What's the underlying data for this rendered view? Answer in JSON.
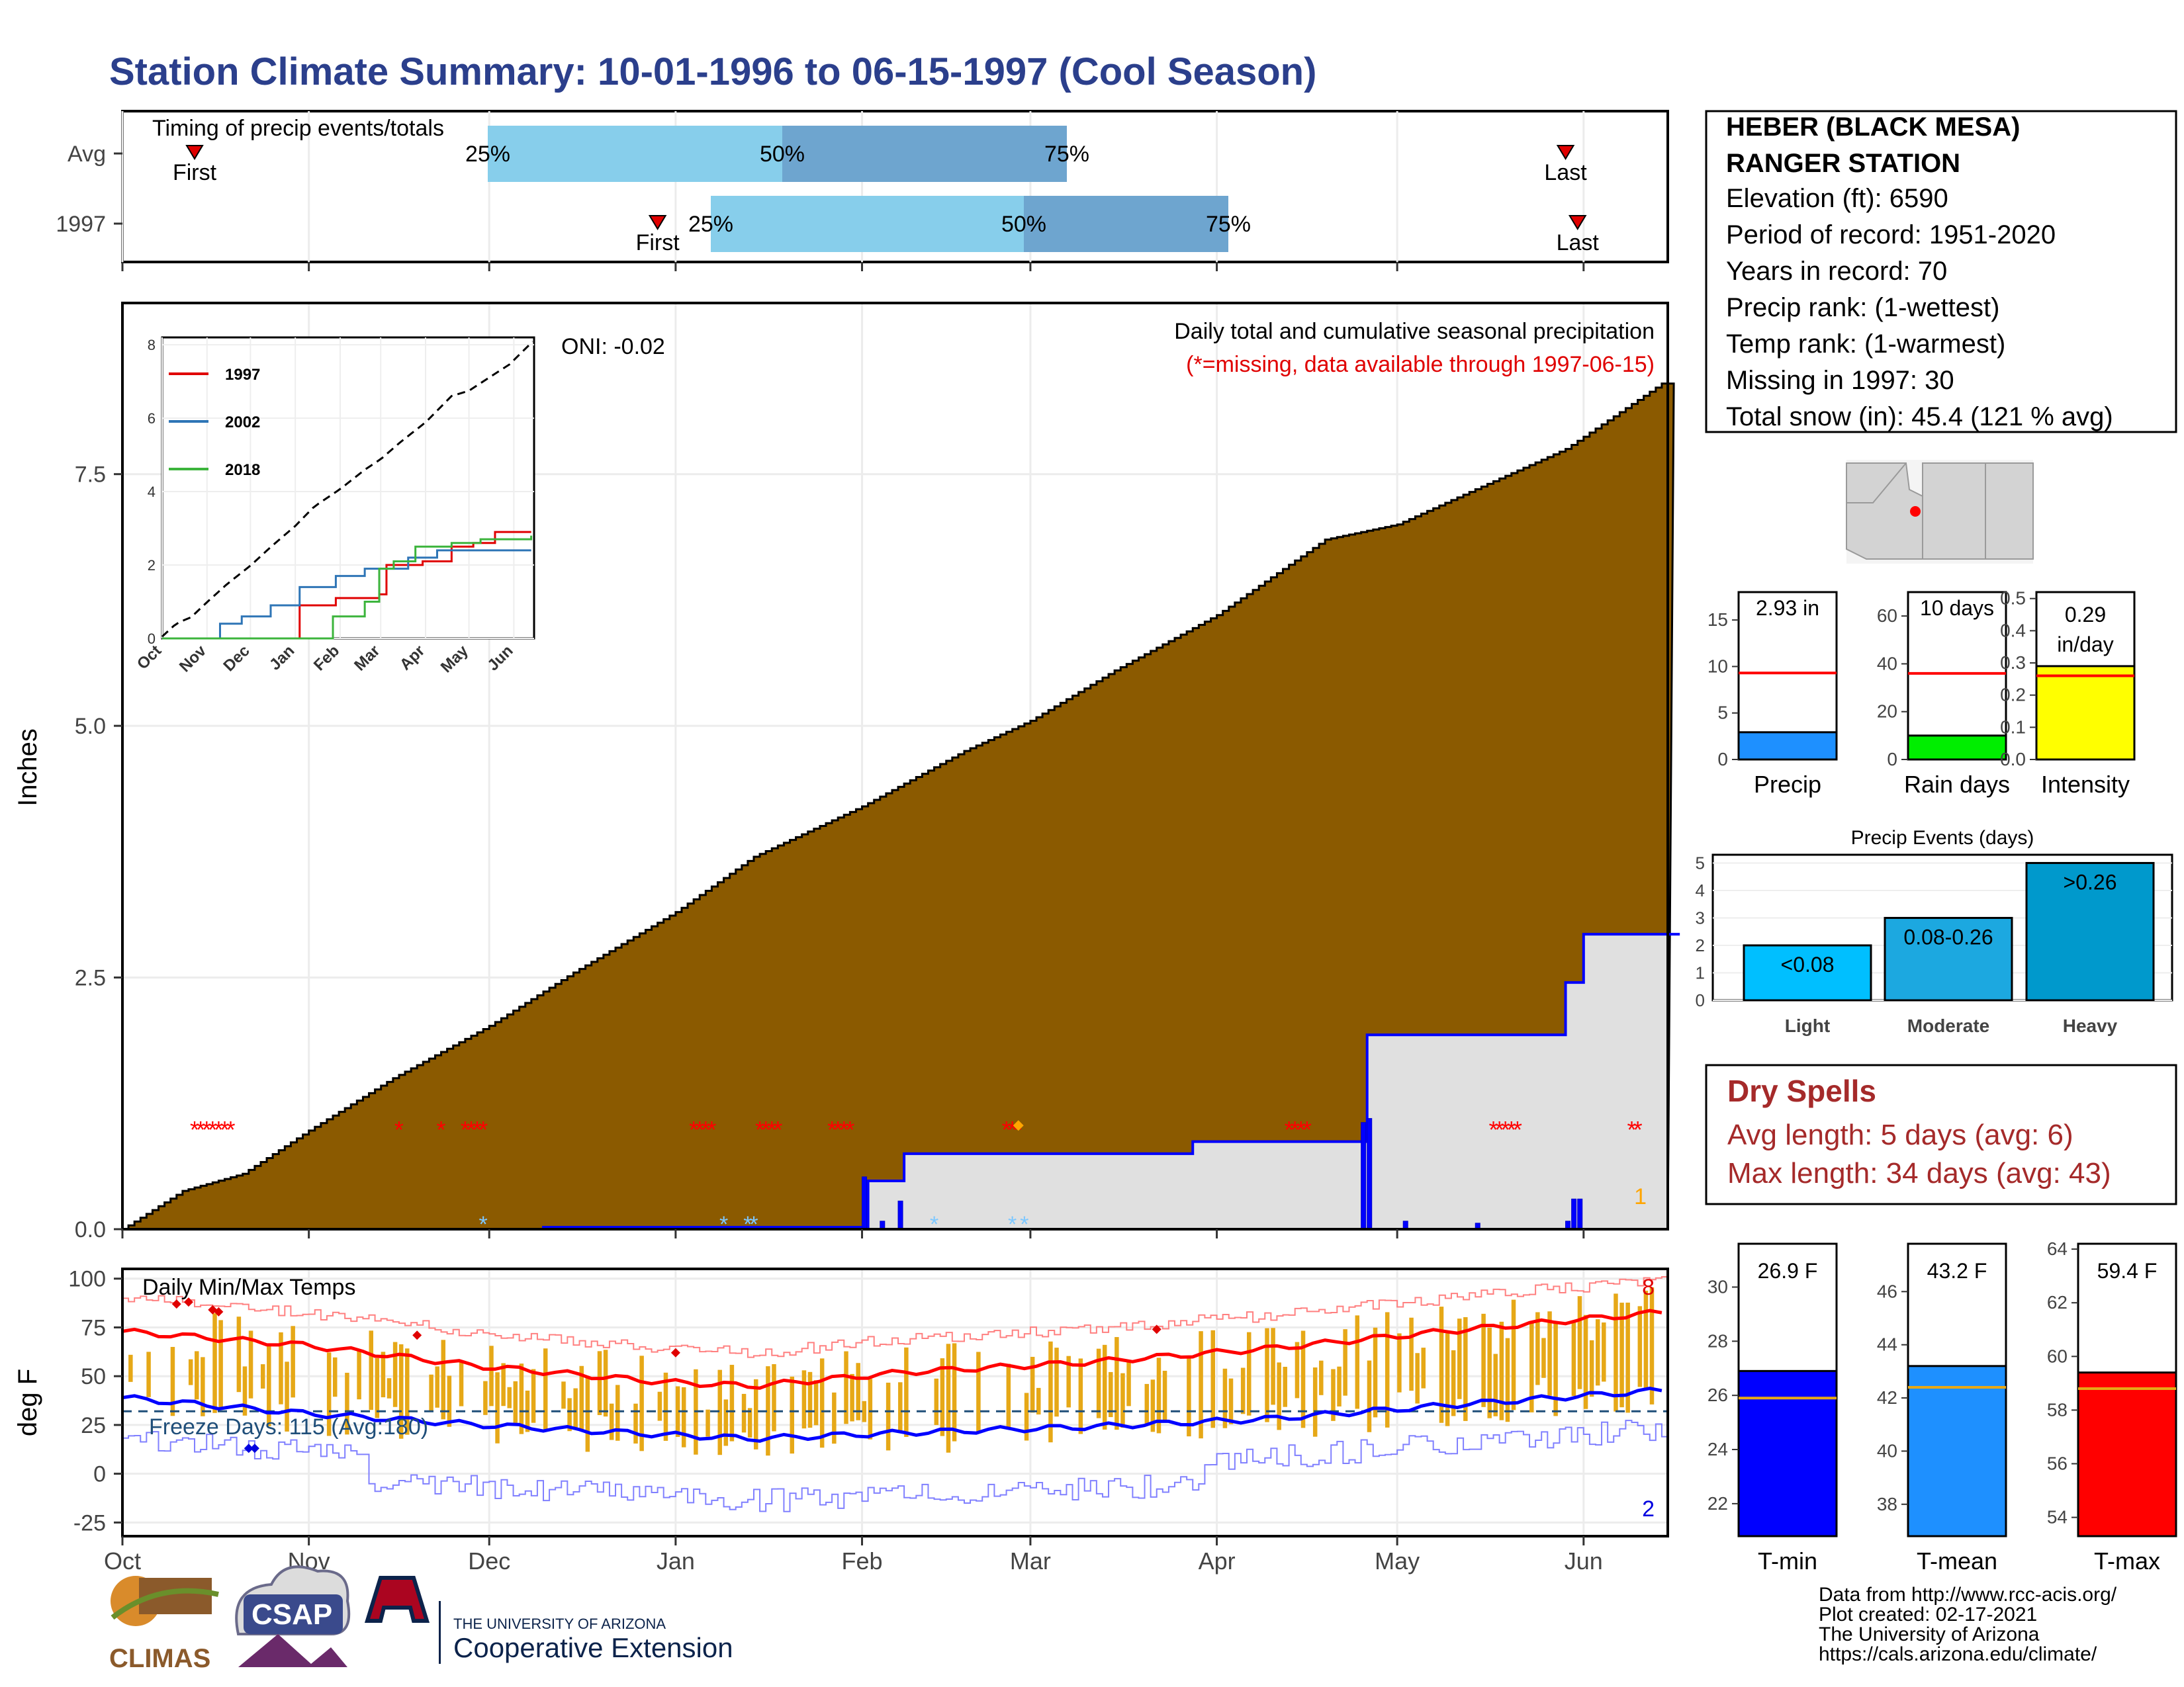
{
  "title": "Station Climate Summary: 10-01-1996 to 06-15-1997 (Cool Season)",
  "colors": {
    "title": "#2b3f8c",
    "precip_fill": "#8b5a00",
    "avg_fill": "#e0e0e0",
    "daily_line": "#0000ff",
    "missing": "#ff0000",
    "q1": "#87ceeb",
    "q2": "#6ea5cf",
    "temp_bar": "#e6a817",
    "tmax": "#ff0000",
    "tmin": "#0000ff",
    "dry": "#a52a2a"
  },
  "timing_panel": {
    "title": "Timing of precip events/totals",
    "rows": [
      {
        "label": "Avg",
        "first": "First",
        "last": "Last",
        "p25": "25%",
        "p50": "50%",
        "p75": "75%"
      },
      {
        "label": "1997",
        "first": "First",
        "last": "Last",
        "p25": "25%",
        "p50": "50%",
        "p75": "75%"
      }
    ]
  },
  "precip_panel": {
    "ylabel": "Inches",
    "yticks": [
      "0.0",
      "2.5",
      "5.0",
      "7.5"
    ],
    "title": "Daily total and cumulative seasonal precipitation",
    "note": "(*=missing, data available through 1997-06-15)",
    "oni": "ONI: -0.02",
    "corner_num": "1"
  },
  "inset": {
    "yticks": [
      "0",
      "2",
      "4",
      "6",
      "8"
    ],
    "months": [
      "Oct",
      "Nov",
      "Dec",
      "Jan",
      "Feb",
      "Mar",
      "Apr",
      "May",
      "Jun"
    ],
    "legend": [
      "1997",
      "2002",
      "2018"
    ]
  },
  "temp_panel": {
    "title": "Daily Min/Max Temps",
    "ylabel": "deg F",
    "yticks": [
      "100",
      "75",
      "50",
      "25",
      "0",
      "-25"
    ],
    "freeze": "Freeze Days: 115 (Avg:180)",
    "count_max": "8",
    "count_min": "2"
  },
  "months": [
    "Oct",
    "Nov",
    "Dec",
    "Jan",
    "Feb",
    "Mar",
    "Apr",
    "May",
    "Jun"
  ],
  "station": {
    "name1": "HEBER (BLACK MESA)",
    "name2": "RANGER STATION",
    "lines": [
      "Elevation (ft): 6590",
      "Period of record: 1951-2020",
      "Years in record: 70",
      "Precip rank:  (1-wettest)",
      "Temp rank:  (1-warmest)",
      "Missing in 1997: 30",
      "Total snow (in): 45.4 (121 % avg)"
    ]
  },
  "mini_bars": [
    {
      "label": "Precip",
      "value_text": "2.93 in",
      "value": 2.93,
      "avg": 9.3,
      "ymax": 18,
      "yticks": [
        "0",
        "5",
        "10",
        "15"
      ],
      "color": "#1e90ff"
    },
    {
      "label": "Rain days",
      "value_text": "10 days",
      "value": 10,
      "avg": 36,
      "ymax": 70,
      "yticks": [
        "0",
        "20",
        "40",
        "60"
      ],
      "color": "#00ee00"
    },
    {
      "label": "Intensity",
      "value_text": "0.29 in/day",
      "value": 0.29,
      "avg": 0.26,
      "ymax": 0.52,
      "yticks": [
        "0.0",
        "0.1",
        "0.2",
        "0.3",
        "0.4",
        "0.5"
      ],
      "color": "#ffff00"
    }
  ],
  "events": {
    "title": "Precip Events (days)",
    "categories": [
      "Light",
      "Moderate",
      "Heavy"
    ],
    "labels": [
      "<0.08",
      "0.08-0.26",
      ">0.26"
    ],
    "values": [
      2,
      3,
      5
    ],
    "yticks": [
      "0",
      "1",
      "2",
      "3",
      "4",
      "5"
    ]
  },
  "dry_spells": {
    "title": "Dry Spells",
    "avg": "Avg length: 5 days (avg: 6)",
    "max": "Max length: 34 days (avg: 43)"
  },
  "temp_bars": [
    {
      "label": "T-min",
      "value_text": "26.9 F",
      "value": 26.9,
      "avg": 25.9,
      "ymin": 20.8,
      "ymax": 31.6,
      "yticks": [
        "22",
        "24",
        "26",
        "28",
        "30"
      ],
      "color": "#0000ff"
    },
    {
      "label": "T-mean",
      "value_text": "43.2 F",
      "value": 43.2,
      "avg": 42.4,
      "ymin": 36.8,
      "ymax": 47.8,
      "yticks": [
        "38",
        "40",
        "42",
        "44",
        "46"
      ],
      "color": "#1e90ff"
    },
    {
      "label": "T-max",
      "value_text": "59.4 F",
      "value": 59.4,
      "avg": 58.8,
      "ymin": 53.3,
      "ymax": 64.2,
      "yticks": [
        "54",
        "56",
        "58",
        "60",
        "62",
        "64"
      ],
      "color": "#ff0000"
    }
  ],
  "footer": {
    "lines": [
      "Data from http://www.rcc-acis.org/",
      "Plot created: 02-17-2021",
      "The University of Arizona",
      "https://cals.arizona.edu/climate/"
    ],
    "climas": "CLIMAS",
    "csap": "CSAP",
    "ua_small": "THE UNIVERSITY OF ARIZONA",
    "ua_big": "Cooperative Extension"
  },
  "chart_data": [
    {
      "type": "area",
      "title": "Daily total and cumulative seasonal precipitation",
      "ylabel": "Inches",
      "ylim": [
        0,
        9.2
      ],
      "x_range": [
        "1996-10-01",
        "1997-06-15"
      ],
      "series": [
        {
          "name": "cumulative average",
          "x": [
            0,
            10,
            20,
            31,
            45,
            61,
            75,
            92,
            105,
            123,
            140,
            151,
            165,
            182,
            200,
            212,
            225,
            240,
            256
          ],
          "values": [
            0,
            0.38,
            0.55,
            0.98,
            1.5,
            2.02,
            2.55,
            3.15,
            3.7,
            4.2,
            4.75,
            5.05,
            5.55,
            6.1,
            6.85,
            7.0,
            7.35,
            7.75,
            8.4
          ]
        },
        {
          "name": "cumulative 1997",
          "x": [
            0,
            70,
            123,
            124,
            129,
            130,
            176,
            178,
            206,
            207,
            215,
            240,
            243,
            259
          ],
          "values": [
            0,
            0.02,
            0.02,
            0.48,
            0.48,
            0.75,
            0.75,
            0.87,
            0.87,
            1.93,
            1.93,
            2.45,
            2.93,
            2.93
          ]
        }
      ]
    },
    {
      "type": "line",
      "title": "Daily Min/Max Temps",
      "ylabel": "deg F",
      "ylim": [
        -30,
        100
      ],
      "x_range": [
        "1996-10-01",
        "1997-06-15"
      ],
      "series": [
        {
          "name": "avg max",
          "x": [
            0,
            30,
            60,
            90,
            105,
            130,
            160,
            190,
            220,
            257
          ],
          "values": [
            73,
            66,
            55,
            47,
            45,
            52,
            57,
            64,
            73,
            83
          ]
        },
        {
          "name": "avg min",
          "x": [
            0,
            30,
            60,
            90,
            105,
            130,
            160,
            190,
            220,
            257
          ],
          "values": [
            39,
            31,
            25,
            20,
            18,
            21,
            24,
            28,
            35,
            43
          ]
        }
      ]
    },
    {
      "type": "line",
      "title": "",
      "x": [
        "Oct",
        "Nov",
        "Dec",
        "Jan",
        "Feb",
        "Mar",
        "Apr",
        "May",
        "Jun"
      ],
      "ylim": [
        0,
        8
      ],
      "series": [
        {
          "name": "1997",
          "x": [
            0,
            92,
            95,
            120,
            150,
            155,
            180,
            200,
            215,
            230,
            255
          ],
          "values": [
            0,
            0,
            0.9,
            1.1,
            1.2,
            2.0,
            2.1,
            2.5,
            2.6,
            2.9,
            2.9
          ]
        },
        {
          "name": "2002",
          "x": [
            0,
            40,
            55,
            75,
            95,
            120,
            140,
            170,
            190,
            255
          ],
          "values": [
            0,
            0.4,
            0.6,
            0.9,
            1.4,
            1.7,
            1.9,
            2.2,
            2.4,
            2.4
          ]
        },
        {
          "name": "2018",
          "x": [
            0,
            100,
            118,
            140,
            150,
            160,
            175,
            200,
            220,
            255
          ],
          "values": [
            0,
            0,
            0.6,
            1.0,
            1.9,
            2.1,
            2.5,
            2.6,
            2.7,
            2.8
          ]
        }
      ]
    },
    {
      "type": "bar",
      "title": "Precip Events (days)",
      "categories": [
        "Light",
        "Moderate",
        "Heavy"
      ],
      "values": [
        2,
        3,
        5
      ],
      "ylim": [
        0,
        5.3
      ]
    }
  ]
}
